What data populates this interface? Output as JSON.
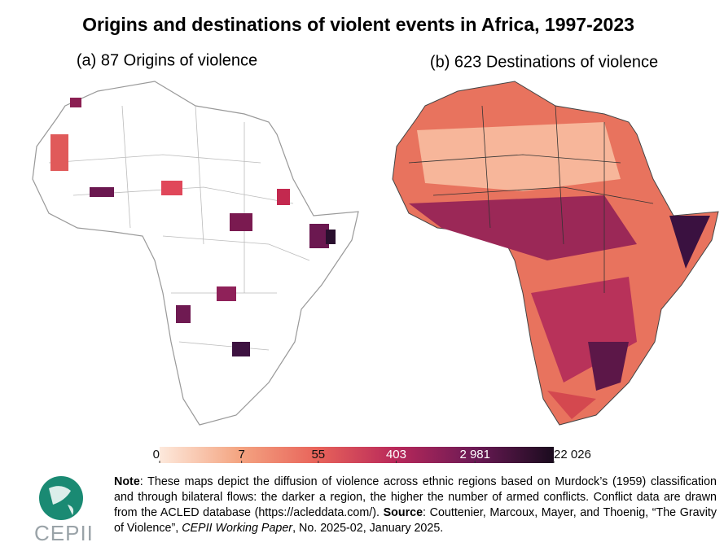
{
  "title": "Origins and destinations of violent events in Africa, 1997-2023",
  "panels": [
    {
      "title": "(a) 87 Origins of violence"
    },
    {
      "title": "(b) 623 Destinations of violence"
    }
  ],
  "colorbar": {
    "scale": "log",
    "lim": [
      0,
      22026
    ],
    "ticks": [
      0,
      7,
      55,
      403,
      {
        "value": 2981,
        "label": "2 981"
      },
      {
        "value": 22026,
        "label": "22 026"
      }
    ],
    "colors": [
      "#fde9dc",
      "#f4a582",
      "#e8635a",
      "#b8285a",
      "#6b1a55",
      "#1a0b1e"
    ]
  },
  "note": {
    "label": "Note",
    "text": ": These maps depict the diffusion of violence across ethnic regions based on Murdock’s (1959) classification and through bilateral flows: the darker a region, the higher the number of armed conflicts. Conflict data are drawn from the ACLED database (https://acleddata.com/). "
  },
  "source": {
    "label": "Source",
    "text": ": Couttenier, Marcoux, Mayer, and Thoenig, “The Gravity of Violence”, ",
    "publication": "CEPII Working Paper",
    "details": ", No. 2025-02, January 2025."
  },
  "logo": {
    "text": "CEPII"
  }
}
